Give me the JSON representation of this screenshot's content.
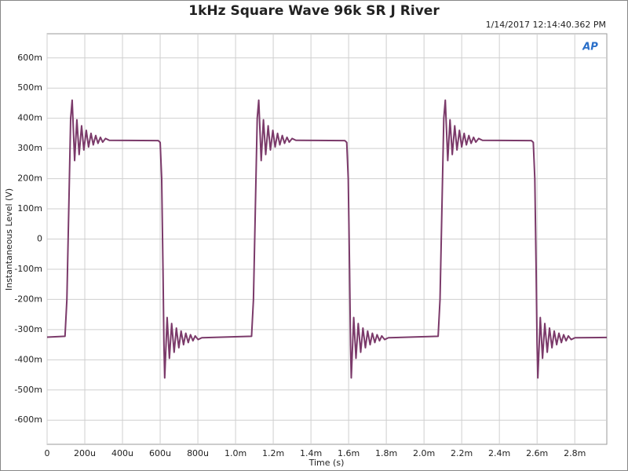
{
  "chart_data": {
    "type": "line",
    "title": "1kHz Square Wave 96k SR J River",
    "timestamp": "1/14/2017 12:14:40.362 PM",
    "logo": "AP",
    "xlabel": "Time (s)",
    "ylabel": "Instantaneous Level (V)",
    "color": "#7b3a6a",
    "grid": true,
    "xlim": [
      0,
      0.00297
    ],
    "ylim": [
      -0.68,
      0.68
    ],
    "xticks": [
      0,
      {
        "value": 0.0002,
        "label": "200u"
      },
      {
        "value": 0.0004,
        "label": "400u"
      },
      {
        "value": 0.0006,
        "label": "600u"
      },
      {
        "value": 0.0008,
        "label": "800u"
      },
      {
        "value": 0.001,
        "label": "1.0m"
      },
      {
        "value": 0.0012,
        "label": "1.2m"
      },
      {
        "value": 0.0014,
        "label": "1.4m"
      },
      {
        "value": 0.0016,
        "label": "1.6m"
      },
      {
        "value": 0.0018,
        "label": "1.8m"
      },
      {
        "value": 0.002,
        "label": "2.0m"
      },
      {
        "value": 0.0022,
        "label": "2.2m"
      },
      {
        "value": 0.0024,
        "label": "2.4m"
      },
      {
        "value": 0.0026,
        "label": "2.6m"
      },
      {
        "value": 0.0028,
        "label": "2.8m"
      }
    ],
    "yticks": [
      {
        "value": 0.6,
        "label": "600m"
      },
      {
        "value": 0.5,
        "label": "500m"
      },
      {
        "value": 0.4,
        "label": "400m"
      },
      {
        "value": 0.3,
        "label": "300m"
      },
      {
        "value": 0.2,
        "label": "200m"
      },
      {
        "value": 0.1,
        "label": "100m"
      },
      0,
      {
        "value": -0.1,
        "label": "-100m"
      },
      {
        "value": -0.2,
        "label": "-200m"
      },
      {
        "value": -0.3,
        "label": "-300m"
      },
      {
        "value": -0.4,
        "label": "-400m"
      },
      {
        "value": -0.5,
        "label": "-500m"
      },
      {
        "value": -0.6,
        "label": "-600m"
      }
    ],
    "x": [
      0,
      9.5e-05,
      0.000105,
      0.000115,
      0.000125,
      0.000133,
      0.000146,
      0.000158,
      0.00017,
      0.000183,
      0.000195,
      0.000208,
      0.00022,
      0.000233,
      0.000245,
      0.000258,
      0.00027,
      0.000283,
      0.000295,
      0.00031,
      0.00033,
      0.00059,
      0.0006,
      0.000608,
      0.000615,
      0.00062,
      0.000624,
      0.000637,
      0.000649,
      0.000661,
      0.000674,
      0.000686,
      0.000699,
      0.000711,
      0.000724,
      0.000736,
      0.000749,
      0.000761,
      0.000774,
      0.000786,
      0.000801,
      0.000821,
      0.001085,
      0.001095,
      0.001105,
      0.001115,
      0.001123,
      0.001136,
      0.001148,
      0.00116,
      0.001173,
      0.001185,
      0.001198,
      0.00121,
      0.001223,
      0.001235,
      0.001248,
      0.00126,
      0.001273,
      0.001285,
      0.0013,
      0.00132,
      0.00158,
      0.00159,
      0.001598,
      0.001605,
      0.00161,
      0.001614,
      0.001627,
      0.001639,
      0.001651,
      0.001664,
      0.001676,
      0.001689,
      0.001701,
      0.001714,
      0.001726,
      0.001739,
      0.001751,
      0.001764,
      0.001776,
      0.001791,
      0.001811,
      0.002075,
      0.002085,
      0.002095,
      0.002105,
      0.002113,
      0.002126,
      0.002138,
      0.00215,
      0.002163,
      0.002175,
      0.002188,
      0.0022,
      0.002213,
      0.002225,
      0.002238,
      0.00225,
      0.002263,
      0.002275,
      0.00229,
      0.00231,
      0.00257,
      0.00258,
      0.002588,
      0.002595,
      0.0026,
      0.002604,
      0.002617,
      0.002629,
      0.002641,
      0.002654,
      0.002666,
      0.002679,
      0.002691,
      0.002704,
      0.002716,
      0.002729,
      0.002741,
      0.002754,
      0.002766,
      0.002781,
      0.002801,
      0.00297
    ],
    "values": [
      -0.325,
      -0.322,
      -0.2,
      0.1,
      0.4,
      0.46,
      0.26,
      0.395,
      0.28,
      0.375,
      0.295,
      0.36,
      0.305,
      0.35,
      0.312,
      0.343,
      0.317,
      0.337,
      0.321,
      0.333,
      0.327,
      0.326,
      0.32,
      0.2,
      -0.1,
      -0.35,
      -0.46,
      -0.26,
      -0.395,
      -0.28,
      -0.375,
      -0.295,
      -0.36,
      -0.305,
      -0.35,
      -0.312,
      -0.343,
      -0.317,
      -0.337,
      -0.321,
      -0.333,
      -0.327,
      -0.322,
      -0.2,
      0.1,
      0.4,
      0.46,
      0.26,
      0.395,
      0.28,
      0.375,
      0.295,
      0.36,
      0.305,
      0.35,
      0.312,
      0.343,
      0.317,
      0.337,
      0.321,
      0.333,
      0.327,
      0.326,
      0.32,
      0.2,
      -0.1,
      -0.35,
      -0.46,
      -0.26,
      -0.395,
      -0.28,
      -0.375,
      -0.295,
      -0.36,
      -0.305,
      -0.35,
      -0.312,
      -0.343,
      -0.317,
      -0.337,
      -0.321,
      -0.333,
      -0.327,
      -0.322,
      -0.2,
      0.1,
      0.4,
      0.46,
      0.26,
      0.395,
      0.28,
      0.375,
      0.295,
      0.36,
      0.305,
      0.35,
      0.312,
      0.343,
      0.317,
      0.337,
      0.321,
      0.333,
      0.327,
      0.326,
      0.32,
      0.2,
      -0.1,
      -0.35,
      -0.46,
      -0.26,
      -0.395,
      -0.28,
      -0.375,
      -0.295,
      -0.36,
      -0.305,
      -0.35,
      -0.312,
      -0.343,
      -0.317,
      -0.337,
      -0.321,
      -0.333,
      -0.327,
      -0.326
    ]
  }
}
